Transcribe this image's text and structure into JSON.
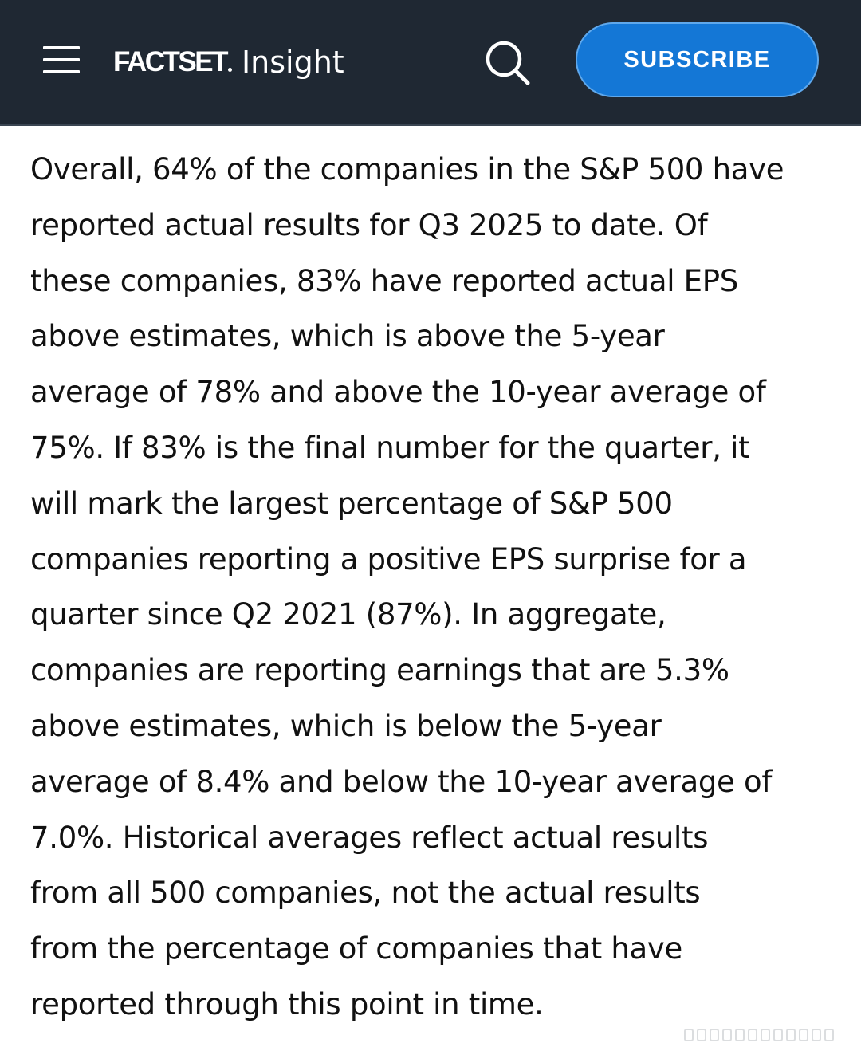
{
  "header": {
    "logo_brand": "FACTSET",
    "logo_product": "Insight",
    "subscribe_label": "SUBSCRIBE",
    "background_color": "#1f2833",
    "accent_color": "#1477d6",
    "menu_icon": "hamburger-menu-icon",
    "search_icon": "search-icon"
  },
  "article": {
    "lines": [
      "Overall, 64% of the companies in the S&P 500 have",
      "reported actual results for Q3 2025 to date. Of",
      "these companies, 83% have reported actual EPS",
      "above estimates, which is above the 5-year",
      "average of 78% and above the 10-year average of",
      "75%. If 83% is the final number for the quarter, it",
      "will mark the largest percentage of S&P 500",
      "companies reporting a positive EPS surprise for a",
      "quarter since Q2 2021 (87%). In aggregate,",
      "companies are reporting earnings that are 5.3%",
      "above estimates, which is below the 5-year",
      "average of 8.4% and below the 10-year average of",
      "7.0%. Historical averages reflect actual results",
      "from all 500 companies, not the actual results",
      "from the percentage of companies that have",
      "reported through this point in time."
    ]
  }
}
